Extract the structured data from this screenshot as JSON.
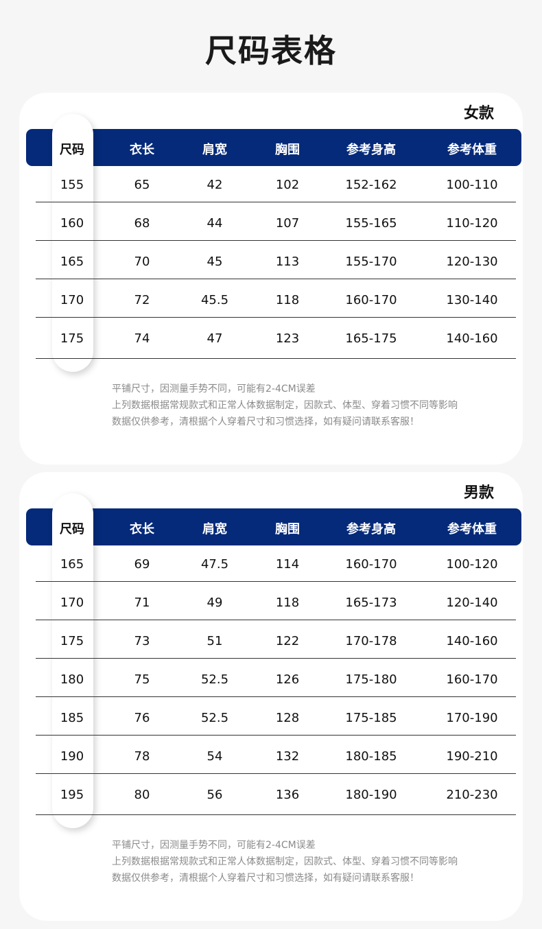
{
  "title": "尺码表格",
  "columns": [
    "尺码",
    "衣长",
    "肩宽",
    "胸围",
    "参考身高",
    "参考体重"
  ],
  "notes": [
    "平铺尺寸，因测量手势不同，可能有2-4CM误差",
    "上列数据根据常规款式和正常人体数据制定，因款式、体型、穿着习惯不同等影响",
    "数据仅供参考，清根据个人穿着尺寸和习惯选择，如有疑问请联系客服！"
  ],
  "colors": {
    "header": "#052a7a",
    "background": "#f6f6f6"
  },
  "tables": [
    {
      "label": "女款",
      "rows": [
        [
          "155",
          "65",
          "42",
          "102",
          "152-162",
          "100-110"
        ],
        [
          "160",
          "68",
          "44",
          "107",
          "155-165",
          "110-120"
        ],
        [
          "165",
          "70",
          "45",
          "113",
          "155-170",
          "120-130"
        ],
        [
          "170",
          "72",
          "45.5",
          "118",
          "160-170",
          "130-140"
        ],
        [
          "175",
          "74",
          "47",
          "123",
          "165-175",
          "140-160"
        ]
      ]
    },
    {
      "label": "男款",
      "rows": [
        [
          "165",
          "69",
          "47.5",
          "114",
          "160-170",
          "100-120"
        ],
        [
          "170",
          "71",
          "49",
          "118",
          "165-173",
          "120-140"
        ],
        [
          "175",
          "73",
          "51",
          "122",
          "170-178",
          "140-160"
        ],
        [
          "180",
          "75",
          "52.5",
          "126",
          "175-180",
          "160-170"
        ],
        [
          "185",
          "76",
          "52.5",
          "128",
          "175-185",
          "170-190"
        ],
        [
          "190",
          "78",
          "54",
          "132",
          "180-185",
          "190-210"
        ],
        [
          "195",
          "80",
          "56",
          "136",
          "180-190",
          "210-230"
        ]
      ]
    }
  ]
}
